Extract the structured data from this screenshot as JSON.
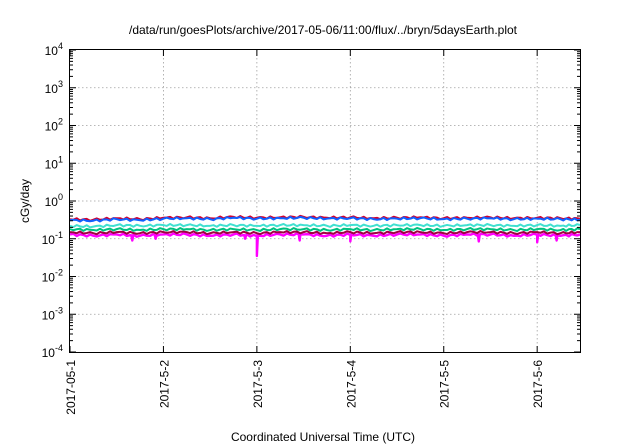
{
  "chart_data": {
    "type": "line",
    "title": "/data/run/goesPlots/archive/2017-05-06/11:00/flux/../bryn/5daysEarth.plot",
    "xlabel": "Coordinated Universal Time (UTC)",
    "ylabel": "cGy/day",
    "y_scale": "log",
    "ylim": [
      0.0001,
      10000
    ],
    "xlim": [
      "2017-05-01T00:00",
      "2017-05-06T11:00"
    ],
    "grid": true,
    "legend": "none",
    "x_tick_labels": [
      "2017-05-1",
      "2017-5-2",
      "2017-5-3",
      "2017-5-4",
      "2017-5-5",
      "2017-5-6"
    ],
    "y_ticks": [
      {
        "base": "10",
        "exp": "-4"
      },
      {
        "base": "10",
        "exp": "-3"
      },
      {
        "base": "10",
        "exp": "-2"
      },
      {
        "base": "10",
        "exp": "-1"
      },
      {
        "base": "10",
        "exp": "0"
      },
      {
        "base": "10",
        "exp": "1"
      },
      {
        "base": "10",
        "exp": "2"
      },
      {
        "base": "10",
        "exp": "3"
      },
      {
        "base": "10",
        "exp": "4"
      }
    ],
    "x": [
      "2017-05-01T00:00",
      "2017-05-01T06:00",
      "2017-05-01T12:00",
      "2017-05-01T18:00",
      "2017-05-02T00:00",
      "2017-05-02T06:00",
      "2017-05-02T12:00",
      "2017-05-02T18:00",
      "2017-05-03T00:00",
      "2017-05-03T06:00",
      "2017-05-03T12:00",
      "2017-05-03T18:00",
      "2017-05-04T00:00",
      "2017-05-04T06:00",
      "2017-05-04T12:00",
      "2017-05-04T18:00",
      "2017-05-05T00:00",
      "2017-05-05T06:00",
      "2017-05-05T12:00",
      "2017-05-05T18:00",
      "2017-05-06T00:00",
      "2017-05-06T06:00",
      "2017-05-06T11:00"
    ],
    "series": [
      {
        "color": "#ff00ff",
        "values": [
          0.13,
          0.12,
          0.13,
          0.12,
          0.13,
          0.13,
          0.12,
          0.13,
          0.12,
          0.13,
          0.13,
          0.12,
          0.13,
          0.12,
          0.13,
          0.13,
          0.12,
          0.13,
          0.13,
          0.12,
          0.13,
          0.12,
          0.13
        ],
        "dips": [
          {
            "x": "2017-05-01T16:00",
            "y": 0.09
          },
          {
            "x": "2017-05-01T22:00",
            "y": 0.1
          },
          {
            "x": "2017-05-02T21:00",
            "y": 0.1
          },
          {
            "x": "2017-05-03T00:00",
            "y": 0.035
          },
          {
            "x": "2017-05-03T11:00",
            "y": 0.09
          },
          {
            "x": "2017-05-04T00:00",
            "y": 0.085
          },
          {
            "x": "2017-05-05T09:00",
            "y": 0.085
          },
          {
            "x": "2017-05-06T00:00",
            "y": 0.08
          },
          {
            "x": "2017-05-06T05:00",
            "y": 0.09
          }
        ]
      },
      {
        "color": "#a00040",
        "values": [
          0.15,
          0.14,
          0.15,
          0.14,
          0.15,
          0.15,
          0.14,
          0.15,
          0.14,
          0.15,
          0.15,
          0.14,
          0.15,
          0.14,
          0.15,
          0.15,
          0.14,
          0.15,
          0.15,
          0.14,
          0.15,
          0.14,
          0.15
        ]
      },
      {
        "color": "#00c080",
        "values": [
          0.18,
          0.17,
          0.18,
          0.17,
          0.18,
          0.18,
          0.17,
          0.18,
          0.17,
          0.18,
          0.18,
          0.17,
          0.18,
          0.17,
          0.18,
          0.18,
          0.17,
          0.18,
          0.18,
          0.17,
          0.18,
          0.17,
          0.18
        ]
      },
      {
        "color": "#40e0d0",
        "values": [
          0.22,
          0.21,
          0.23,
          0.22,
          0.23,
          0.23,
          0.22,
          0.23,
          0.22,
          0.23,
          0.23,
          0.22,
          0.23,
          0.22,
          0.23,
          0.23,
          0.22,
          0.23,
          0.23,
          0.22,
          0.23,
          0.22,
          0.23
        ]
      },
      {
        "color": "#d00030",
        "values": [
          0.33,
          0.32,
          0.35,
          0.33,
          0.36,
          0.37,
          0.35,
          0.38,
          0.36,
          0.37,
          0.38,
          0.36,
          0.37,
          0.35,
          0.36,
          0.37,
          0.35,
          0.36,
          0.37,
          0.35,
          0.36,
          0.35,
          0.34
        ]
      },
      {
        "color": "#1060ff",
        "values": [
          0.31,
          0.3,
          0.33,
          0.31,
          0.34,
          0.35,
          0.33,
          0.36,
          0.34,
          0.35,
          0.36,
          0.34,
          0.35,
          0.33,
          0.34,
          0.35,
          0.33,
          0.34,
          0.35,
          0.33,
          0.34,
          0.33,
          0.32
        ]
      }
    ]
  }
}
